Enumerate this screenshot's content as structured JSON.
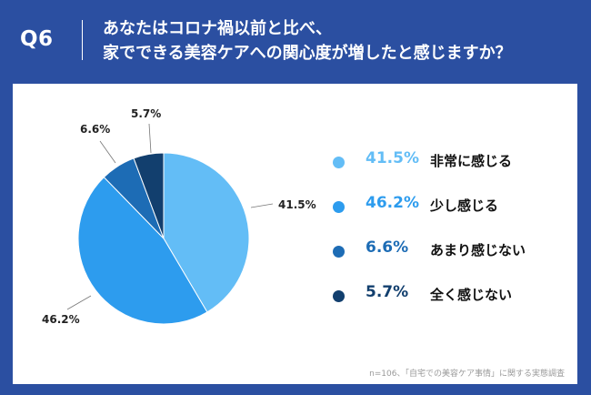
{
  "header": {
    "q_label": "Q6",
    "title_line1": "あなたはコロナ禍以前と比べ、",
    "title_line2": "家でできる美容ケアへの関心度が増したと感じますか？"
  },
  "chart_data": {
    "type": "pie",
    "title": "",
    "start_angle_deg": 0,
    "direction": "clockwise",
    "labels": [
      "非常に感じる",
      "少し感じる",
      "あまり感じない",
      "全く感じない"
    ],
    "values": [
      41.5,
      46.2,
      6.6,
      5.7
    ],
    "value_labels": [
      "41.5%",
      "46.2%",
      "6.6%",
      "5.7%"
    ],
    "colors": [
      "#63bdf6",
      "#2d9cee",
      "#1d6cb5",
      "#123f6e"
    ],
    "legend_placement": "right"
  },
  "legend": {
    "items": [
      {
        "value": "41.5%",
        "label": "非常に感じる",
        "color": "#63bdf6",
        "text_color": "#63bdf6"
      },
      {
        "value": "46.2%",
        "label": "少し感じる",
        "color": "#2d9cee",
        "text_color": "#2d9cee"
      },
      {
        "value": "6.6%",
        "label": "あまり感じない",
        "color": "#1d6cb5",
        "text_color": "#1d6cb5"
      },
      {
        "value": "5.7%",
        "label": "全く感じない",
        "color": "#123f6e",
        "text_color": "#123f6e"
      }
    ]
  },
  "footnote": "n=106、「自宅での美容ケア事情」に関する実態調査"
}
